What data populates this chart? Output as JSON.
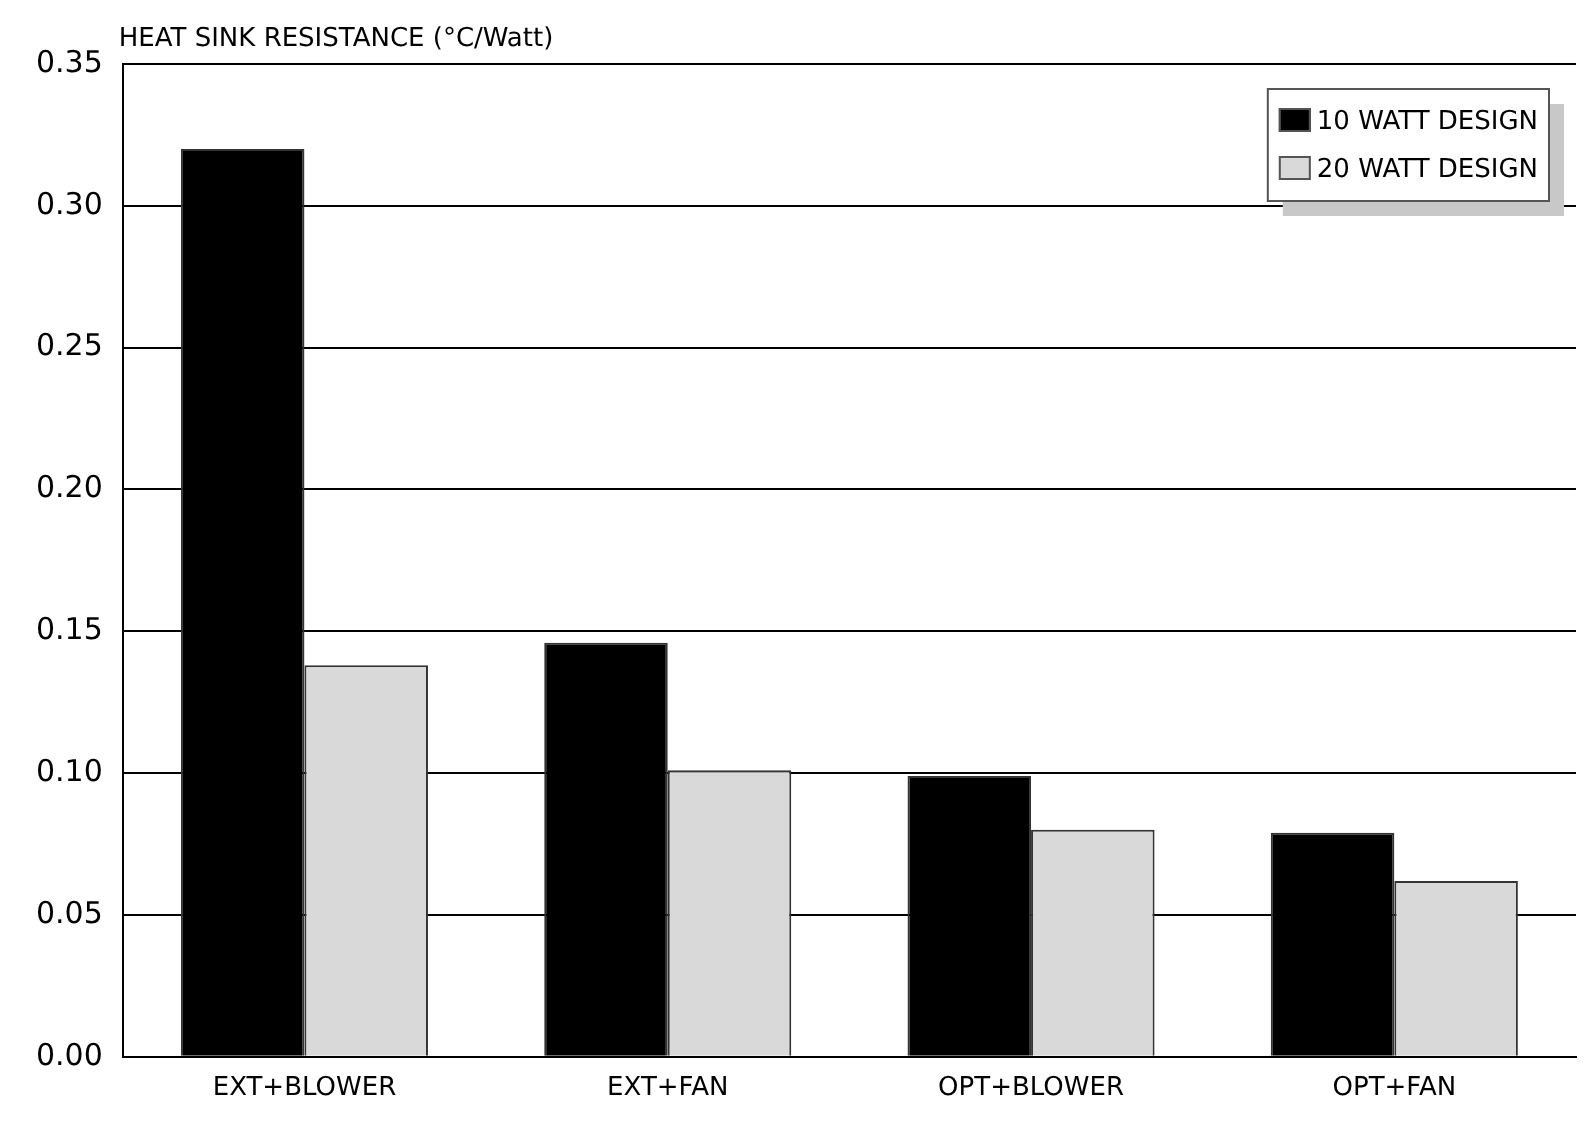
{
  "chart_data": {
    "type": "bar",
    "title": "HEAT SINK RESISTANCE (°C/Watt)",
    "categories": [
      "EXT+BLOWER",
      "EXT+FAN",
      "OPT+BLOWER",
      "OPT+FAN"
    ],
    "series": [
      {
        "name": "10 WATT DESIGN",
        "color": "#000000",
        "values": [
          0.32,
          0.146,
          0.099,
          0.079
        ]
      },
      {
        "name": "20 WATT DESIGN",
        "color": "#d9d9d9",
        "values": [
          0.138,
          0.101,
          0.08,
          0.062
        ]
      }
    ],
    "ylim": [
      0,
      0.35
    ],
    "yticks": [
      {
        "value": 0,
        "label": "0.00"
      },
      0.05,
      {
        "value": 0.1,
        "label": "0.10"
      },
      0.15,
      {
        "value": 0.2,
        "label": "0.20"
      },
      0.25,
      {
        "value": 0.3,
        "label": "0.30"
      },
      0.35
    ],
    "grid": "y",
    "legend": "top right"
  }
}
